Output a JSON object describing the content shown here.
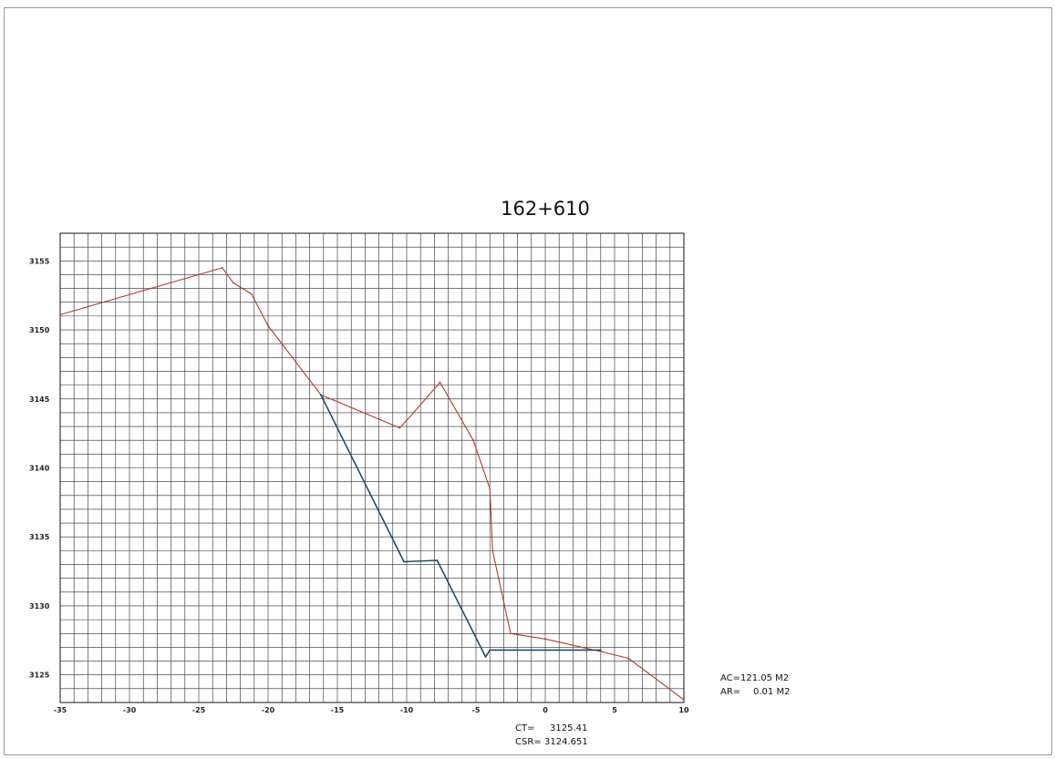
{
  "chart_data": {
    "type": "line",
    "title": "162+610",
    "xlim": [
      -35,
      10
    ],
    "ylim": [
      3123,
      3157
    ],
    "x_ticks": [
      -35,
      -30,
      -25,
      -20,
      -15,
      -10,
      -5,
      0,
      5,
      10
    ],
    "x_tick_labels": [
      "-35",
      "-30",
      "-25",
      "-20",
      "-15",
      "-10",
      "-5",
      "0",
      "5",
      "10"
    ],
    "y_ticks": [
      3125,
      3130,
      3135,
      3140,
      3145,
      3150,
      3155
    ],
    "y_tick_labels": [
      "3125",
      "3130",
      "3135",
      "3140",
      "3145",
      "3150",
      "3155"
    ],
    "grid": true,
    "series": [
      {
        "color": "#b23a2c",
        "x": [
          -35,
          -23.3,
          -22.5,
          -21.2,
          -20,
          -16.2,
          -10.5,
          -9.5,
          -7.6,
          -5.2,
          -4,
          -3.8,
          -2.5,
          0,
          4,
          6,
          10
        ],
        "y": [
          3151.1,
          3154.5,
          3153.4,
          3152.6,
          3150.3,
          3145.3,
          3142.9,
          3144.0,
          3146.2,
          3142.0,
          3138.5,
          3134.0,
          3128.0,
          3127.6,
          3126.7,
          3126.2,
          3123.2
        ]
      },
      {
        "color": "#1d4f6b",
        "x": [
          -16.2,
          -10.2,
          -7.8,
          -4.3,
          -4.0,
          4.0
        ],
        "y": [
          3145.3,
          3133.2,
          3133.3,
          3126.3,
          3126.8,
          3126.8
        ]
      }
    ],
    "annotations": {
      "ac_label": "AC=",
      "ac_value": "121.05 M2",
      "ar_label": "AR=",
      "ar_value": "0.01 M2",
      "ct_label": "CT=",
      "ct_value": "3125.41",
      "csr_label": "CSR=",
      "csr_value": "3124.651"
    }
  }
}
